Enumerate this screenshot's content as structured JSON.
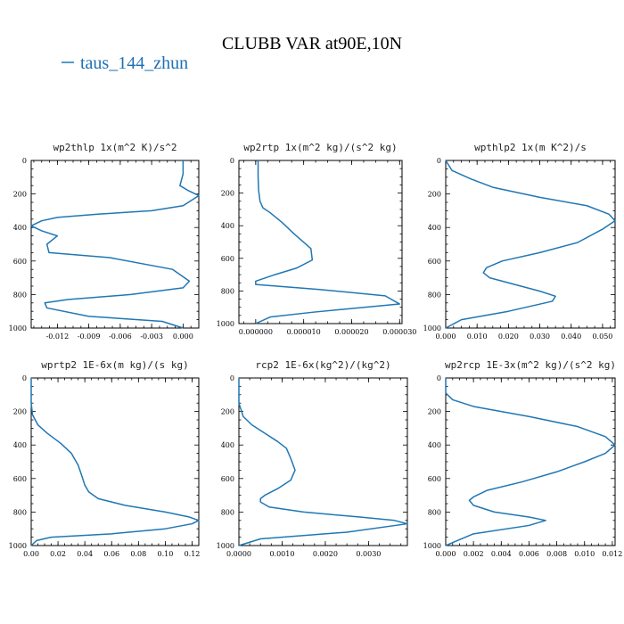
{
  "figure": {
    "title": "CLUBB VAR at90E,10N",
    "legend_label": "taus_144_zhun",
    "colors": {
      "series": "#1f77b4",
      "legend_text": "#1f6fb4"
    }
  },
  "chart_data": [
    {
      "type": "line",
      "title": "wp2thlp  1x(m^2 K)/s^2",
      "ylim": [
        1000,
        0
      ],
      "y_ticks": [
        0,
        200,
        400,
        600,
        800,
        1000
      ],
      "y_tick_labels": [
        "0",
        "200",
        "400",
        "600",
        "800",
        "1000"
      ],
      "xlim": [
        -0.0145,
        0.0015
      ],
      "x_ticks": [
        -0.012,
        -0.009,
        -0.006,
        -0.003,
        0.0
      ],
      "x_tick_labels": [
        "-0.012",
        "-0.009",
        "-0.006",
        "-0.003",
        "0.000"
      ],
      "series": [
        {
          "x": [
            0.0,
            0.0,
            -0.0003,
            0.0005,
            0.0015,
            0.0,
            -0.003,
            -0.008,
            -0.012,
            -0.0135,
            -0.0145,
            -0.0135,
            -0.012,
            -0.013,
            -0.0128,
            -0.007,
            -0.001,
            0.0006,
            0.0,
            -0.005,
            -0.011,
            -0.0132,
            -0.013,
            -0.009,
            -0.002,
            0.0
          ],
          "y": [
            0,
            80,
            150,
            180,
            210,
            270,
            300,
            320,
            340,
            360,
            390,
            420,
            450,
            500,
            550,
            580,
            650,
            720,
            760,
            800,
            830,
            850,
            880,
            930,
            960,
            1000
          ]
        }
      ]
    },
    {
      "type": "line",
      "title": "wp2rtp  1x(m^2 kg)/(s^2 kg)",
      "ylim": [
        1000,
        0
      ],
      "y_ticks": [
        0,
        200,
        400,
        600,
        800,
        1000
      ],
      "y_tick_labels": [
        "0",
        "200",
        "400",
        "600",
        "800",
        "1000"
      ],
      "xlim": [
        -3.5e-06,
        3.05e-05
      ],
      "x_ticks": [
        0.0,
        1e-05,
        2e-05,
        3e-05
      ],
      "x_tick_labels": [
        "0.000000",
        "0.000010",
        "0.000020",
        "0.000030"
      ],
      "series": [
        {
          "x": [
            5e-07,
            5e-07,
            6e-07,
            9e-07,
            1.5e-06,
            3e-06,
            5.5e-06,
            8e-06,
            1.15e-05,
            1.18e-05,
            8.5e-06,
            4e-06,
            0.0,
            0.0,
            1.3e-05,
            2.7e-05,
            3e-05,
            1.2e-05,
            3e-06,
            0.0
          ],
          "y": [
            0,
            100,
            180,
            250,
            290,
            320,
            380,
            450,
            540,
            610,
            660,
            700,
            740,
            760,
            790,
            830,
            880,
            930,
            960,
            1000
          ]
        }
      ]
    },
    {
      "type": "line",
      "title": "wpthlp2  1x(m K^2)/s",
      "ylim": [
        1000,
        0
      ],
      "y_ticks": [
        0,
        200,
        400,
        600,
        800,
        1000
      ],
      "y_tick_labels": [
        "0",
        "200",
        "400",
        "600",
        "800",
        "1000"
      ],
      "xlim": [
        0.0,
        0.054
      ],
      "x_ticks": [
        0.0,
        0.01,
        0.02,
        0.03,
        0.04,
        0.05
      ],
      "x_tick_labels": [
        "0.000",
        "0.010",
        "0.020",
        "0.030",
        "0.040",
        "0.050"
      ],
      "series": [
        {
          "x": [
            0.0,
            0.002,
            0.008,
            0.015,
            0.03,
            0.045,
            0.052,
            0.054,
            0.05,
            0.042,
            0.03,
            0.018,
            0.013,
            0.012,
            0.014,
            0.022,
            0.03,
            0.035,
            0.034,
            0.02,
            0.005,
            0.0
          ],
          "y": [
            0,
            60,
            110,
            160,
            220,
            270,
            320,
            360,
            410,
            490,
            550,
            600,
            640,
            670,
            700,
            740,
            780,
            810,
            840,
            900,
            950,
            1000
          ]
        }
      ]
    },
    {
      "type": "line",
      "title": "wprtp2  1E-6x(m kg)/(s kg)",
      "ylim": [
        1000,
        0
      ],
      "y_ticks": [
        0,
        200,
        400,
        600,
        800,
        1000
      ],
      "y_tick_labels": [
        "0",
        "200",
        "400",
        "600",
        "800",
        "1000"
      ],
      "xlim": [
        0.0,
        0.125
      ],
      "x_ticks": [
        0.0,
        0.02,
        0.04,
        0.06,
        0.08,
        0.1,
        0.12
      ],
      "x_tick_labels": [
        "0.00",
        "0.02",
        "0.04",
        "0.06",
        "0.08",
        "0.10",
        "0.12"
      ],
      "series": [
        {
          "x": [
            0.0,
            0.0,
            0.001,
            0.005,
            0.012,
            0.022,
            0.03,
            0.035,
            0.038,
            0.04,
            0.043,
            0.05,
            0.07,
            0.1,
            0.118,
            0.125,
            0.12,
            0.1,
            0.06,
            0.015,
            0.004,
            0.0
          ],
          "y": [
            0,
            150,
            220,
            280,
            330,
            390,
            450,
            520,
            590,
            640,
            680,
            720,
            760,
            800,
            830,
            850,
            870,
            900,
            930,
            950,
            970,
            1000
          ]
        }
      ]
    },
    {
      "type": "line",
      "title": "rcp2  1E-6x(kg^2)/(kg^2)",
      "ylim": [
        1000,
        0
      ],
      "y_ticks": [
        0,
        200,
        400,
        600,
        800,
        1000
      ],
      "y_tick_labels": [
        "0",
        "200",
        "400",
        "600",
        "800",
        "1000"
      ],
      "xlim": [
        0.0,
        0.0039
      ],
      "x_ticks": [
        0.0,
        0.001,
        0.002,
        0.003
      ],
      "x_tick_labels": [
        "0.0000",
        "0.0010",
        "0.0020",
        "0.0030"
      ],
      "series": [
        {
          "x": [
            0.0,
            0.0,
            0.0001,
            0.0003,
            0.0006,
            0.0009,
            0.0011,
            0.0012,
            0.0013,
            0.0012,
            0.0009,
            0.0006,
            0.0005,
            0.0005,
            0.0007,
            0.0015,
            0.0028,
            0.0036,
            0.0039,
            0.0025,
            0.0005,
            0.0
          ],
          "y": [
            0,
            150,
            230,
            280,
            330,
            380,
            420,
            480,
            550,
            610,
            660,
            700,
            720,
            740,
            770,
            800,
            830,
            850,
            870,
            920,
            960,
            1000
          ]
        }
      ]
    },
    {
      "type": "line",
      "title": "wp2rcp  1E-3x(m^2 kg)/(s^2 kg)",
      "ylim": [
        1000,
        0
      ],
      "y_ticks": [
        0,
        200,
        400,
        600,
        800,
        1000
      ],
      "y_tick_labels": [
        "0",
        "200",
        "400",
        "600",
        "800",
        "1000"
      ],
      "xlim": [
        0.0,
        0.0122
      ],
      "x_ticks": [
        0.0,
        0.002,
        0.004,
        0.006,
        0.008,
        0.01,
        0.012
      ],
      "x_tick_labels": [
        "0.000",
        "0.002",
        "0.004",
        "0.006",
        "0.008",
        "0.010",
        "0.012"
      ],
      "series": [
        {
          "x": [
            0.0,
            0.0,
            0.0005,
            0.002,
            0.006,
            0.0095,
            0.0115,
            0.0122,
            0.0115,
            0.01,
            0.008,
            0.0055,
            0.003,
            0.002,
            0.0017,
            0.002,
            0.0035,
            0.006,
            0.0072,
            0.006,
            0.002,
            0.0
          ],
          "y": [
            0,
            90,
            130,
            170,
            230,
            290,
            350,
            400,
            450,
            500,
            560,
            620,
            670,
            710,
            730,
            760,
            800,
            830,
            850,
            880,
            930,
            1000
          ]
        }
      ]
    }
  ]
}
